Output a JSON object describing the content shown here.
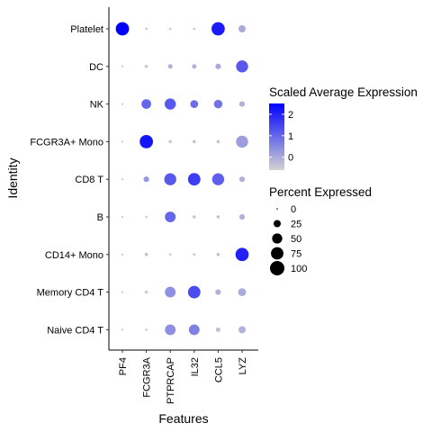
{
  "chart_data": {
    "type": "dotplot",
    "xlabel": "Features",
    "ylabel": "Identity",
    "features": [
      "PF4",
      "FCGR3A",
      "PTPRCAP",
      "IL32",
      "CCL5",
      "LYZ"
    ],
    "identities": [
      "Platelet",
      "DC",
      "NK",
      "FCGR3A+ Mono",
      "CD8 T",
      "B",
      "CD14+ Mono",
      "Memory CD4 T",
      "Naive CD4 T"
    ],
    "avg_expression": [
      [
        2.5,
        -0.5,
        -0.5,
        -0.5,
        2.1,
        0.0
      ],
      [
        -0.5,
        -0.4,
        -0.1,
        -0.1,
        0.0,
        1.2
      ],
      [
        -0.5,
        1.0,
        1.2,
        0.9,
        0.8,
        -0.1
      ],
      [
        -0.5,
        2.2,
        -0.4,
        -0.3,
        -0.3,
        0.2
      ],
      [
        -0.5,
        0.3,
        1.2,
        1.6,
        1.1,
        -0.1
      ],
      [
        -0.5,
        -0.5,
        1.0,
        -0.4,
        -0.3,
        -0.1
      ],
      [
        -0.5,
        -0.3,
        -0.5,
        -0.4,
        -0.3,
        2.0
      ],
      [
        -0.5,
        -0.5,
        0.4,
        1.4,
        -0.1,
        0.0
      ],
      [
        -0.5,
        -0.5,
        0.4,
        0.6,
        -0.3,
        -0.1
      ]
    ],
    "pct_expressed": [
      [
        85,
        3,
        3,
        3,
        85,
        25
      ],
      [
        2,
        5,
        10,
        10,
        15,
        70
      ],
      [
        2,
        45,
        60,
        30,
        35,
        15
      ],
      [
        2,
        85,
        5,
        5,
        5,
        70
      ],
      [
        2,
        15,
        70,
        75,
        70,
        15
      ],
      [
        2,
        3,
        55,
        5,
        5,
        15
      ],
      [
        2,
        5,
        3,
        3,
        5,
        85
      ],
      [
        2,
        5,
        55,
        75,
        15,
        30
      ],
      [
        2,
        3,
        55,
        55,
        10,
        25
      ]
    ],
    "color_legend": {
      "title": "Scaled Average Expression",
      "ticks": [
        2,
        1,
        0
      ],
      "range": [
        -0.6,
        2.5
      ],
      "low_color": "#D3D3D3",
      "high_color": "#0000FF"
    },
    "size_legend": {
      "title": "Percent Expressed",
      "ticks": [
        0,
        25,
        50,
        75,
        100
      ]
    },
    "legend_position": "right"
  }
}
